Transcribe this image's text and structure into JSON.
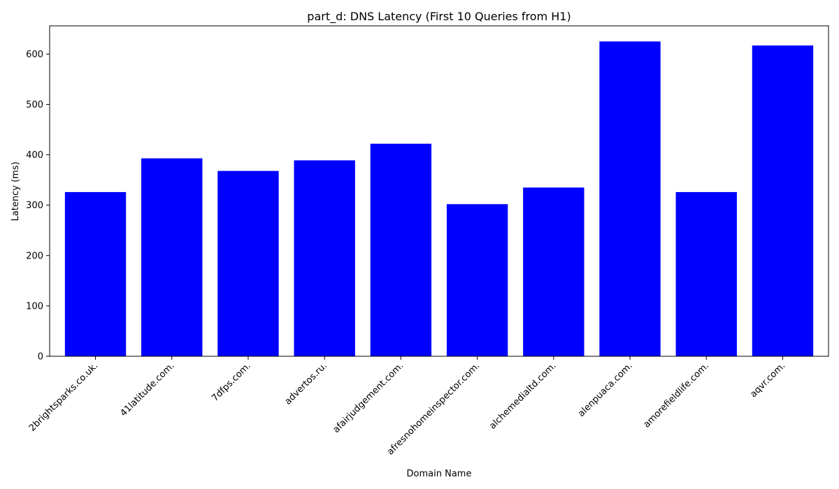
{
  "chart_data": {
    "type": "bar",
    "title": "part_d: DNS Latency (First 10 Queries from H1)",
    "xlabel": "Domain Name",
    "ylabel": "Latency (ms)",
    "categories": [
      "2brightsparks.co.uk.",
      "41latitude.com.",
      "7dfps.com.",
      "advertos.ru.",
      "afairjudgement.com.",
      "afresnohomeinspector.com.",
      "alchemedialtd.com.",
      "alenpuaca.com.",
      "amorefieldlife.com.",
      "aqvr.com."
    ],
    "values": [
      326,
      393,
      368,
      389,
      422,
      302,
      335,
      625,
      326,
      617
    ],
    "ylim": [
      0,
      656
    ],
    "yticks": [
      "0",
      "100",
      "200",
      "300",
      "400",
      "500",
      "600"
    ],
    "bar_color": "#0000ff",
    "grid": false,
    "legend": "none"
  }
}
